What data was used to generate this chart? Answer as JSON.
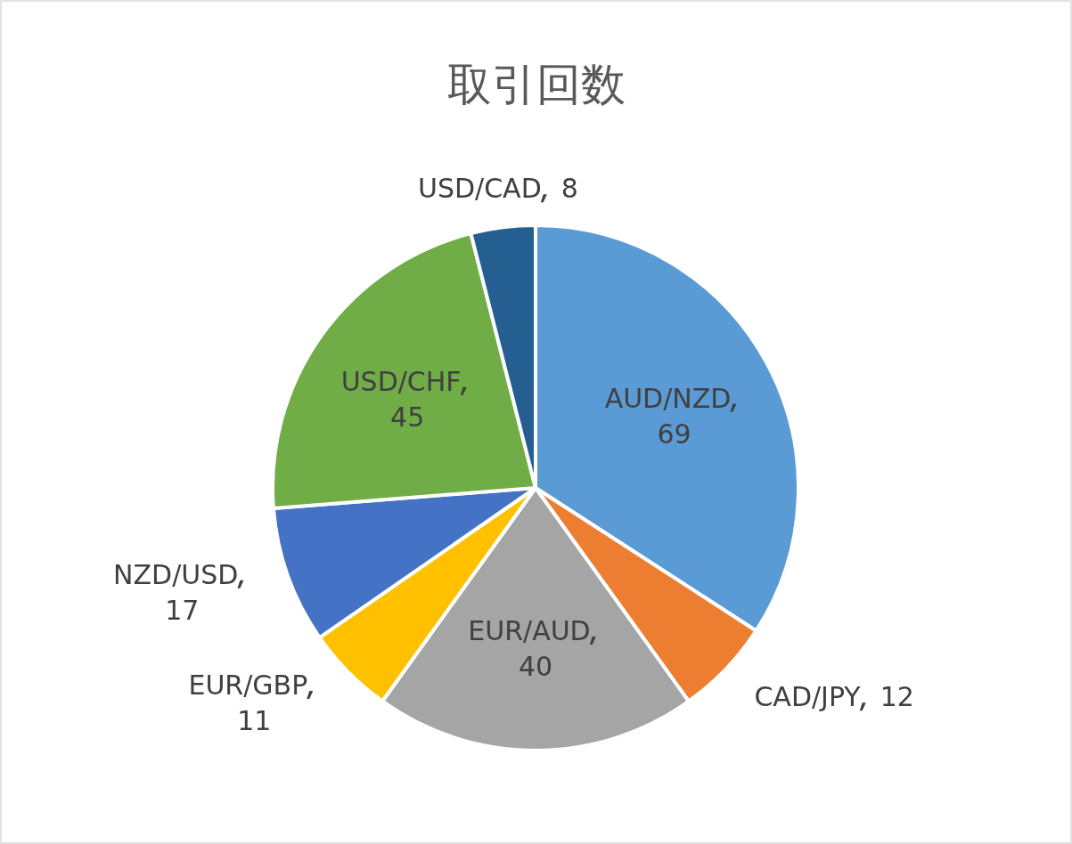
{
  "chart_data": {
    "type": "pie",
    "title": "取引回数",
    "categories": [
      "AUD/NZD",
      "CAD/JPY",
      "EUR/AUD",
      "EUR/GBP",
      "NZD/USD",
      "USD/CHF",
      "USD/CAD"
    ],
    "values": [
      69,
      12,
      40,
      11,
      17,
      45,
      8
    ],
    "colors": [
      "#5b9bd5",
      "#ed7d31",
      "#a5a5a5",
      "#ffc000",
      "#4472c4",
      "#70ad47",
      "#255e91"
    ],
    "data_labels": true,
    "legend": false
  }
}
